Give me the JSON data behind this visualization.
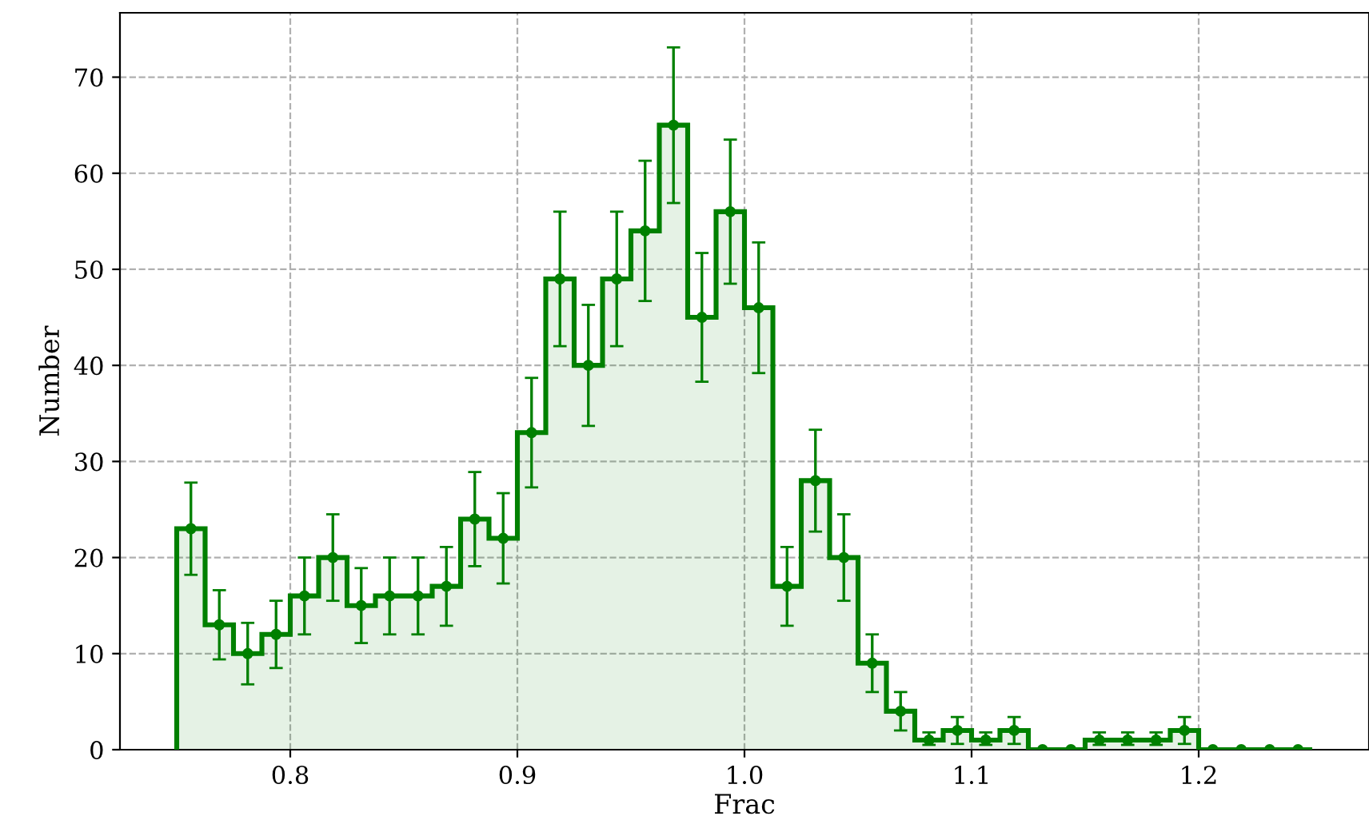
{
  "chart_data": {
    "type": "histogram",
    "xlabel": "Frac",
    "ylabel": "Number",
    "bins": [
      0.75,
      0.7625,
      0.775,
      0.7875,
      0.8,
      0.8125,
      0.825,
      0.8375,
      0.85,
      0.8625,
      0.875,
      0.8875,
      0.9,
      0.9125,
      0.925,
      0.9375,
      0.95,
      0.9625,
      0.975,
      0.9875,
      1.0,
      1.0125,
      1.025,
      1.0375,
      1.05,
      1.0625,
      1.075,
      1.0875,
      1.1,
      1.1125,
      1.125,
      1.1375,
      1.15,
      1.1625,
      1.175,
      1.1875,
      1.2,
      1.2125,
      1.225,
      1.2375,
      1.25
    ],
    "values": [
      23,
      13,
      10,
      12,
      16,
      20,
      15,
      16,
      16,
      17,
      24,
      22,
      33,
      49,
      40,
      49,
      54,
      65,
      45,
      56,
      46,
      17,
      28,
      20,
      9,
      4,
      1,
      2,
      1,
      2,
      0,
      0,
      1,
      1,
      1,
      2,
      0,
      0,
      0,
      0
    ],
    "color": "#008000",
    "series": [
      {
        "type": "scatter",
        "color": "#008000",
        "marker": "circle",
        "x": [
          0.75625,
          0.76875,
          0.78125,
          0.79375,
          0.80625,
          0.81875,
          0.83125,
          0.84375,
          0.85625,
          0.86875,
          0.88125,
          0.89375,
          0.90625,
          0.91875,
          0.93125,
          0.94375,
          0.95625,
          0.96875,
          0.98125,
          0.99375,
          1.00625,
          1.01875,
          1.03125,
          1.04375,
          1.05625,
          1.06875,
          1.08125,
          1.09375,
          1.10625,
          1.11875,
          1.13125,
          1.14375,
          1.15625,
          1.16875,
          1.18125,
          1.19375,
          1.20625,
          1.21875,
          1.23125,
          1.24375
        ],
        "values": [
          23,
          13,
          10,
          12,
          16,
          20,
          15,
          16,
          16,
          17,
          24,
          22,
          33,
          49,
          40,
          49,
          54,
          65,
          45,
          56,
          46,
          17,
          28,
          20,
          9,
          4,
          1,
          2,
          1,
          2,
          0,
          0,
          1,
          1,
          1,
          2,
          0,
          0,
          0,
          0
        ],
        "errors": [
          4.8,
          3.6,
          3.2,
          3.5,
          4,
          4.5,
          3.9,
          4,
          4,
          4.1,
          4.9,
          4.7,
          5.7,
          7,
          6.3,
          7,
          7.3,
          8.1,
          6.7,
          7.5,
          6.8,
          4.1,
          5.3,
          4.5,
          3,
          2,
          [
            0.5,
            1.8
          ],
          1.4,
          [
            0.5,
            1.8
          ],
          1.4,
          null,
          null,
          [
            0.5,
            1.8
          ],
          [
            0.5,
            1.8
          ],
          [
            0.5,
            1.8
          ],
          1.4,
          null,
          null,
          null,
          null
        ]
      }
    ],
    "xlim": [
      0.725,
      1.275
    ],
    "ylim": [
      0,
      76.7
    ],
    "xticks": [
      0.8,
      0.9,
      {
        "value": 1.0,
        "label": "1.0"
      },
      1.1,
      1.2
    ],
    "yticks": [
      0,
      10,
      20,
      30,
      40,
      50,
      60,
      70
    ],
    "grid": true
  }
}
